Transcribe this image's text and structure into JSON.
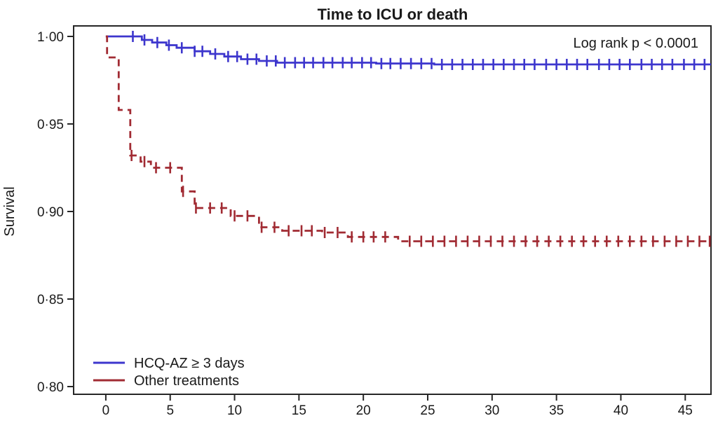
{
  "chart_data": {
    "type": "line",
    "subtype": "kaplan-meier-step",
    "title": "Time to ICU or death",
    "annotation": "Log rank p < 0.0001",
    "xlabel": "",
    "ylabel": "Survival",
    "grid": false,
    "legend_position": "inside-bottom-left",
    "axis_color": "#262626",
    "xlim": [
      -2.5,
      47.0
    ],
    "ylim": [
      0.7956,
      1.006
    ],
    "x_ticks": [
      {
        "value": 0,
        "label": "0"
      },
      {
        "value": 5,
        "label": "5"
      },
      {
        "value": 10,
        "label": "10"
      },
      {
        "value": 15,
        "label": "15"
      },
      {
        "value": 20,
        "label": "20"
      },
      {
        "value": 25,
        "label": "25"
      },
      {
        "value": 30,
        "label": "30"
      },
      {
        "value": 35,
        "label": "35"
      },
      {
        "value": 40,
        "label": "40"
      },
      {
        "value": 45,
        "label": "45"
      }
    ],
    "y_ticks": [
      {
        "value": 1.0,
        "label": "1·00"
      },
      {
        "value": 0.95,
        "label": "0·95"
      },
      {
        "value": 0.9,
        "label": "0·90"
      },
      {
        "value": 0.85,
        "label": "0·85"
      },
      {
        "value": 0.8,
        "label": "0·80"
      }
    ],
    "series": [
      {
        "name": "HCQ-AZ ≥ 3 days",
        "color": "#3d36cd",
        "line_style": "solid",
        "steps": [
          [
            0,
            1.0
          ],
          [
            2.8,
            0.998
          ],
          [
            3.6,
            0.9965
          ],
          [
            4.7,
            0.995
          ],
          [
            5.5,
            0.9935
          ],
          [
            6.9,
            0.9915
          ],
          [
            8.1,
            0.99
          ],
          [
            9.2,
            0.9885
          ],
          [
            10.5,
            0.987
          ],
          [
            11.9,
            0.986
          ],
          [
            13.3,
            0.985
          ],
          [
            21.0,
            0.9845
          ],
          [
            25.5,
            0.984
          ],
          [
            47,
            0.984
          ]
        ],
        "censor_x": [
          2.1,
          3.0,
          4.0,
          4.9,
          5.9,
          6.9,
          7.5,
          8.5,
          9.5,
          10.2,
          11.0,
          11.7,
          12.5,
          13.2,
          13.9,
          14.7,
          15.4,
          16.1,
          16.9,
          17.6,
          18.4,
          19.1,
          19.9,
          20.6,
          21.4,
          22.1,
          22.9,
          23.7,
          24.5,
          25.3,
          26.1,
          26.9,
          27.7,
          28.5,
          29.3,
          30.1,
          30.9,
          31.7,
          32.5,
          33.3,
          34.2,
          35.0,
          35.8,
          36.6,
          37.4,
          38.3,
          39.1,
          39.9,
          40.7,
          41.6,
          42.4,
          43.2,
          44.0,
          44.9,
          45.7,
          46.5
        ]
      },
      {
        "name": "Other treatments",
        "color": "#a12b33",
        "line_style": "dashed",
        "steps": [
          [
            0,
            1.0
          ],
          [
            0.1,
            0.988
          ],
          [
            1.0,
            0.958
          ],
          [
            1.9,
            0.932
          ],
          [
            2.7,
            0.9285
          ],
          [
            3.5,
            0.925
          ],
          [
            5.9,
            0.9115
          ],
          [
            6.9,
            0.902
          ],
          [
            9.7,
            0.8975
          ],
          [
            11.9,
            0.891
          ],
          [
            13.7,
            0.889
          ],
          [
            16.8,
            0.888
          ],
          [
            18.8,
            0.8855
          ],
          [
            22.7,
            0.883
          ],
          [
            47,
            0.883
          ]
        ],
        "censor_x": [
          2.0,
          3.0,
          3.9,
          5.0,
          6.0,
          7.0,
          8.1,
          9.0,
          10.0,
          11.0,
          12.1,
          13.1,
          14.2,
          15.2,
          16.0,
          17.0,
          18.0,
          19.1,
          20.0,
          20.8,
          21.7,
          23.6,
          24.5,
          25.4,
          26.3,
          27.2,
          28.1,
          29.0,
          29.9,
          30.8,
          31.7,
          32.6,
          33.5,
          34.4,
          35.3,
          36.2,
          37.1,
          38.0,
          38.9,
          39.8,
          40.7,
          41.6,
          42.5,
          43.4,
          44.3,
          45.2,
          46.1,
          46.9
        ]
      }
    ]
  }
}
